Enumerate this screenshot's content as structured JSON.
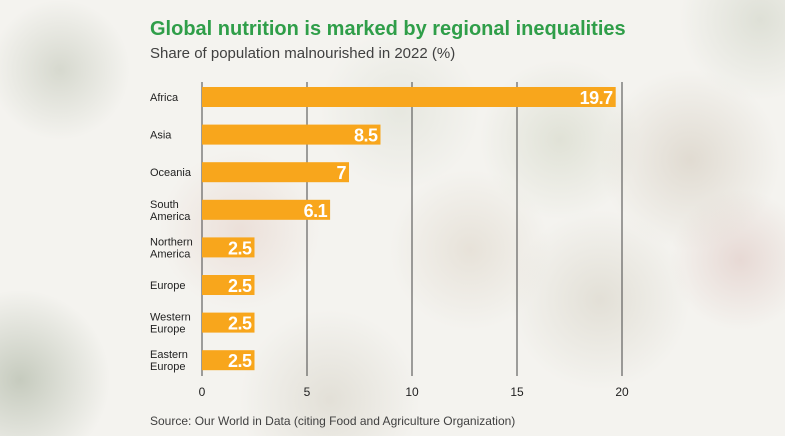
{
  "title": "Global nutrition is marked by regional inequalities",
  "subtitle": "Share of population malnourished in 2022 (%)",
  "source": "Source: Our World in Data (citing Food and Agriculture Organization)",
  "colors": {
    "title": "#2f9e49",
    "bar": "#f8a61c",
    "bar_label": "#ffffff",
    "gridline": "#444444",
    "text": "#222222"
  },
  "chart_data": {
    "type": "bar",
    "orientation": "horizontal",
    "title": "Global nutrition is marked by regional inequalities",
    "subtitle": "Share of population malnourished in 2022 (%)",
    "categories": [
      [
        "Africa"
      ],
      [
        "Asia"
      ],
      [
        "Oceania"
      ],
      [
        "South",
        "America"
      ],
      [
        "Northern",
        "America"
      ],
      [
        "Europe"
      ],
      [
        "Western",
        "Europe"
      ],
      [
        "Eastern",
        "Europe"
      ]
    ],
    "values": [
      19.7,
      8.5,
      7,
      6.1,
      2.5,
      2.5,
      2.5,
      2.5
    ],
    "value_labels": [
      "19.7",
      "8.5",
      "7",
      "6.1",
      "2.5",
      "2.5",
      "2.5",
      "2.5"
    ],
    "xlim": [
      0,
      20
    ],
    "xticks": [
      0,
      5,
      10,
      15,
      20
    ],
    "xtick_labels": [
      "0",
      "5",
      "10",
      "15",
      "20"
    ],
    "xlabel": "",
    "ylabel": "",
    "grid": "vertical",
    "legend": "none"
  }
}
